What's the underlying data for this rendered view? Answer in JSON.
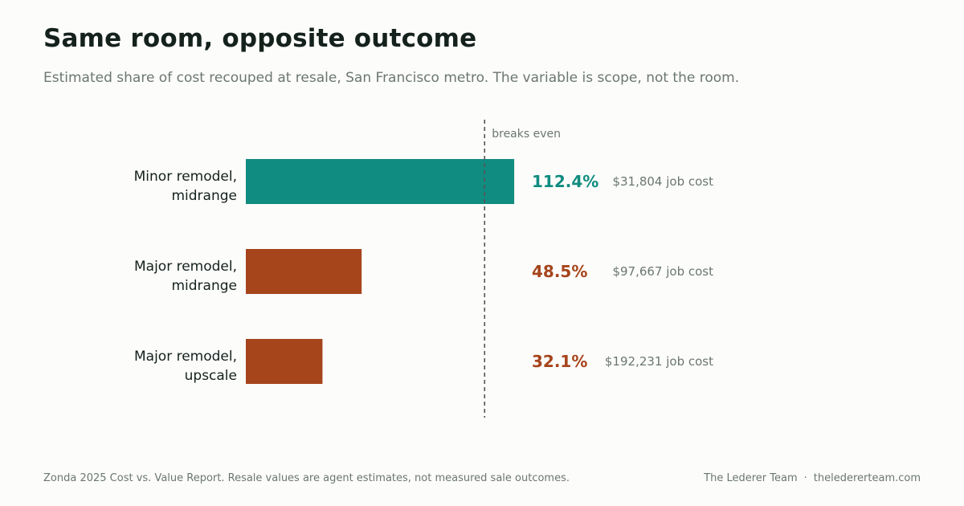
{
  "header": {
    "title": "Same room, opposite outcome",
    "subtitle": "Estimated share of cost recouped at resale, San Francisco metro. The variable is scope, not the room."
  },
  "chart_data": {
    "type": "bar",
    "orientation": "horizontal",
    "categories": [
      [
        "Minor remodel,",
        "midrange"
      ],
      [
        "Major remodel,",
        "midrange"
      ],
      [
        "Major remodel,",
        "upscale"
      ]
    ],
    "values": [
      112.4,
      48.5,
      32.1
    ],
    "value_labels": [
      "112.4%",
      "48.5%",
      "32.1%"
    ],
    "cost_labels": [
      "$31,804 job cost",
      "$97,667 job cost",
      "$192,231 job cost"
    ],
    "unit": "%",
    "reference_line": {
      "value": 100,
      "label": "breaks even"
    },
    "xlim": [
      0,
      127
    ],
    "colors": {
      "above_break_even": "#108c80",
      "below_break_even": "#a6441c",
      "reference_line": "#555555",
      "muted_text": "#6b7770",
      "label_text": "#14211d"
    }
  },
  "footer": {
    "source": "Zonda 2025 Cost vs. Value Report. Resale values are agent estimates, not measured sale outcomes.",
    "brand": "The Lederer Team",
    "separator": "·",
    "website": "theledererteam.com"
  }
}
